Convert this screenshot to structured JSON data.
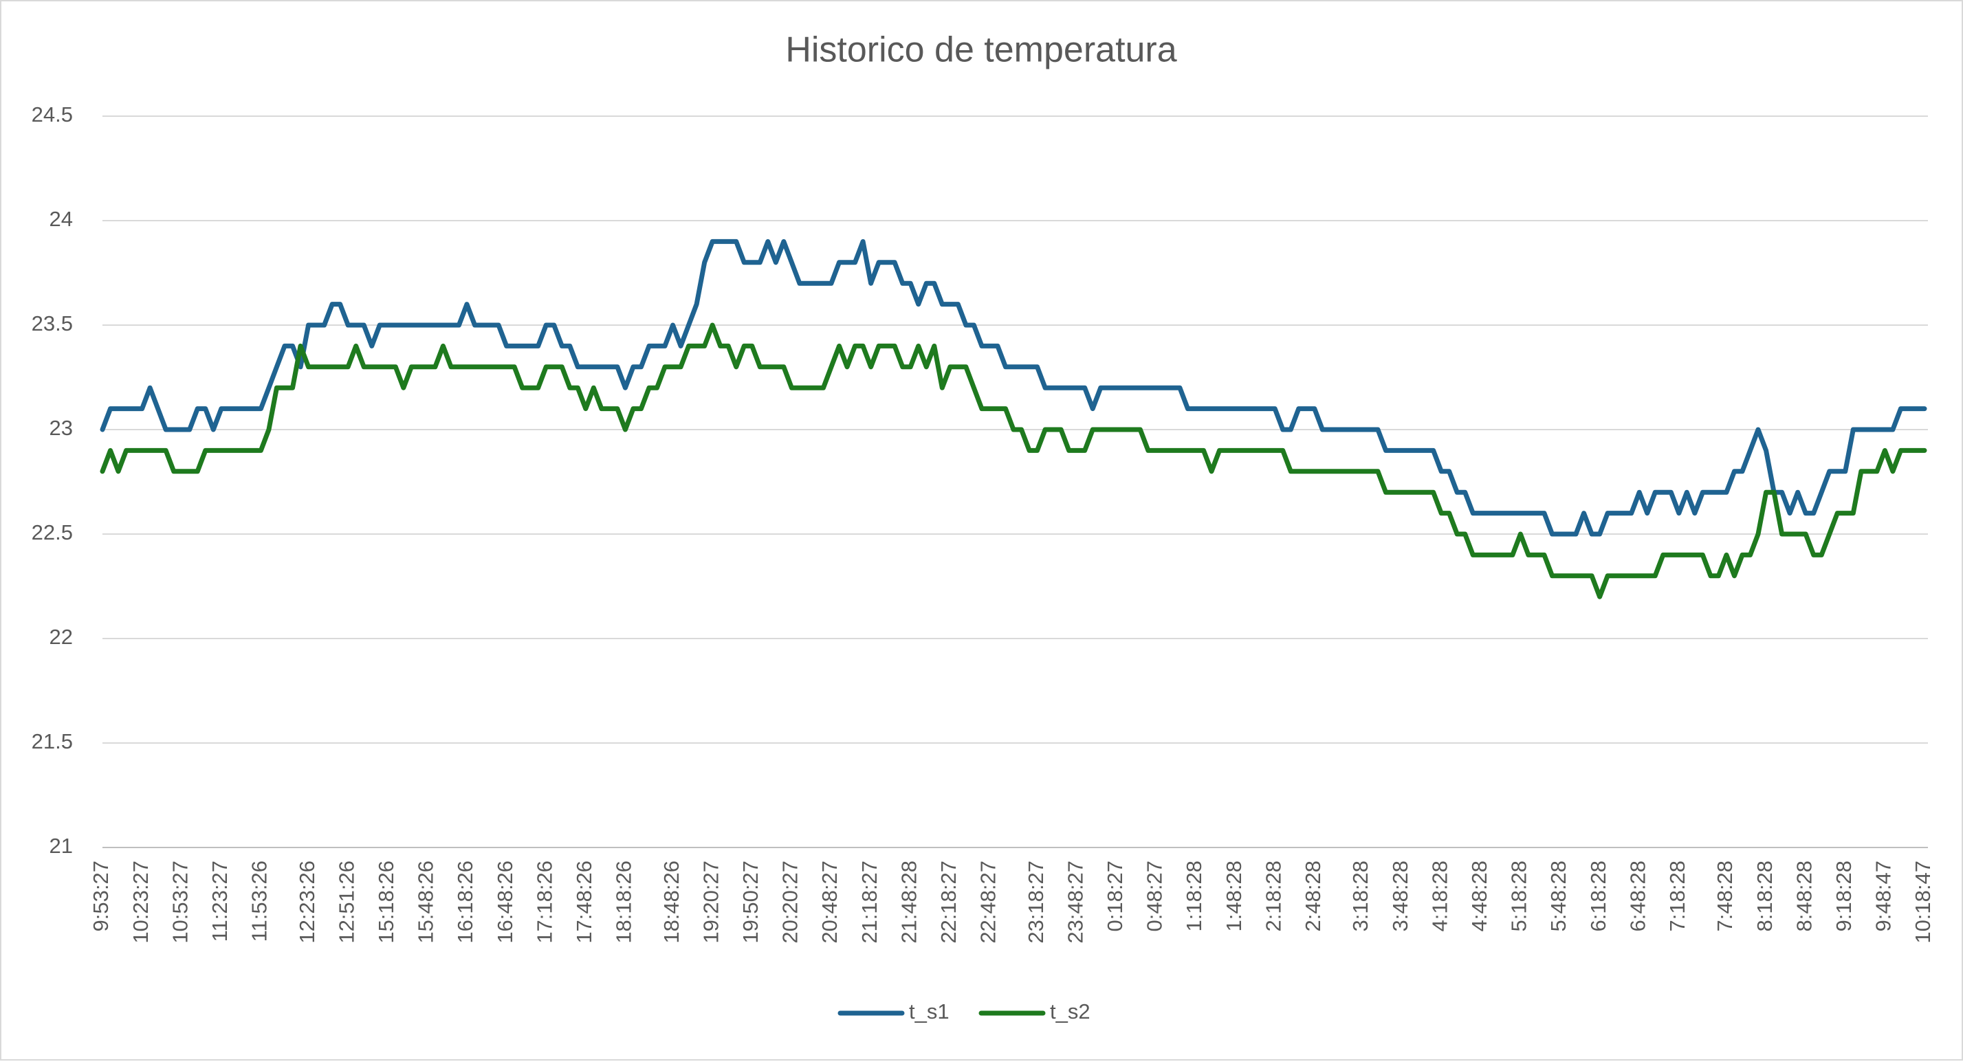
{
  "chart_data": {
    "type": "line",
    "title": "Historico de temperatura",
    "categories": [
      "9:53:27",
      null,
      null,
      null,
      null,
      "10:23:27",
      null,
      null,
      null,
      null,
      "10:53:27",
      null,
      null,
      null,
      null,
      "11:23:27",
      null,
      null,
      null,
      null,
      "11:53:26",
      null,
      null,
      null,
      null,
      null,
      "12:23:26",
      null,
      null,
      null,
      null,
      "12:51:26",
      null,
      null,
      null,
      null,
      "15:18:26",
      null,
      null,
      null,
      null,
      "15:48:26",
      null,
      null,
      null,
      null,
      "16:18:26",
      null,
      null,
      null,
      null,
      "16:48:26",
      null,
      null,
      null,
      null,
      "17:18:26",
      null,
      null,
      null,
      null,
      "17:48:26",
      null,
      null,
      null,
      null,
      "18:18:26",
      null,
      null,
      null,
      null,
      null,
      "18:48:26",
      null,
      null,
      null,
      null,
      "19:20:27",
      null,
      null,
      null,
      null,
      "19:50:27",
      null,
      null,
      null,
      null,
      "20:20:27",
      null,
      null,
      null,
      null,
      "20:48:27",
      null,
      null,
      null,
      null,
      "21:18:27",
      null,
      null,
      null,
      null,
      "21:48:28",
      null,
      null,
      null,
      null,
      "22:18:27",
      null,
      null,
      null,
      null,
      "22:48:27",
      null,
      null,
      null,
      null,
      null,
      "23:18:27",
      null,
      null,
      null,
      null,
      "23:48:27",
      null,
      null,
      null,
      null,
      "0:18:27",
      null,
      null,
      null,
      null,
      "0:48:27",
      null,
      null,
      null,
      null,
      "1:18:28",
      null,
      null,
      null,
      null,
      "1:48:28",
      null,
      null,
      null,
      null,
      "2:18:28",
      null,
      null,
      null,
      null,
      "2:48:28",
      null,
      null,
      null,
      null,
      null,
      "3:18:28",
      null,
      null,
      null,
      null,
      "3:48:28",
      null,
      null,
      null,
      null,
      "4:18:28",
      null,
      null,
      null,
      null,
      "4:48:28",
      null,
      null,
      null,
      null,
      "5:18:28",
      null,
      null,
      null,
      null,
      "5:48:28",
      null,
      null,
      null,
      null,
      "6:18:28",
      null,
      null,
      null,
      null,
      "6:48:28",
      null,
      null,
      null,
      null,
      "7:18:28",
      null,
      null,
      null,
      null,
      null,
      "7:48:28",
      null,
      null,
      null,
      null,
      "8:18:28",
      null,
      null,
      null,
      null,
      "8:48:28",
      null,
      null,
      null,
      null,
      "9:18:28",
      null,
      null,
      null,
      null,
      "9:48:47",
      null,
      null,
      null,
      null,
      "10:18:47"
    ],
    "series": [
      {
        "name": "t_s1",
        "color": "#1f6391",
        "values": [
          23.0,
          23.1,
          23.1,
          23.1,
          23.1,
          23.1,
          23.2,
          23.1,
          23.0,
          23.0,
          23.0,
          23.0,
          23.1,
          23.1,
          23.0,
          23.1,
          23.1,
          23.1,
          23.1,
          23.1,
          23.1,
          23.2,
          23.3,
          23.4,
          23.4,
          23.3,
          23.5,
          23.5,
          23.5,
          23.6,
          23.6,
          23.5,
          23.5,
          23.5,
          23.4,
          23.5,
          23.5,
          23.5,
          23.5,
          23.5,
          23.5,
          23.5,
          23.5,
          23.5,
          23.5,
          23.5,
          23.6,
          23.5,
          23.5,
          23.5,
          23.5,
          23.4,
          23.4,
          23.4,
          23.4,
          23.4,
          23.5,
          23.5,
          23.4,
          23.4,
          23.3,
          23.3,
          23.3,
          23.3,
          23.3,
          23.3,
          23.2,
          23.3,
          23.3,
          23.4,
          23.4,
          23.4,
          23.5,
          23.4,
          23.5,
          23.6,
          23.8,
          23.9,
          23.9,
          23.9,
          23.9,
          23.8,
          23.8,
          23.8,
          23.9,
          23.8,
          23.9,
          23.8,
          23.7,
          23.7,
          23.7,
          23.7,
          23.7,
          23.8,
          23.8,
          23.8,
          23.9,
          23.7,
          23.8,
          23.8,
          23.8,
          23.7,
          23.7,
          23.6,
          23.7,
          23.7,
          23.6,
          23.6,
          23.6,
          23.5,
          23.5,
          23.4,
          23.4,
          23.4,
          23.3,
          23.3,
          23.3,
          23.3,
          23.3,
          23.2,
          23.2,
          23.2,
          23.2,
          23.2,
          23.2,
          23.1,
          23.2,
          23.2,
          23.2,
          23.2,
          23.2,
          23.2,
          23.2,
          23.2,
          23.2,
          23.2,
          23.2,
          23.1,
          23.1,
          23.1,
          23.1,
          23.1,
          23.1,
          23.1,
          23.1,
          23.1,
          23.1,
          23.1,
          23.1,
          23.0,
          23.0,
          23.1,
          23.1,
          23.1,
          23.0,
          23.0,
          23.0,
          23.0,
          23.0,
          23.0,
          23.0,
          23.0,
          22.9,
          22.9,
          22.9,
          22.9,
          22.9,
          22.9,
          22.9,
          22.8,
          22.8,
          22.7,
          22.7,
          22.6,
          22.6,
          22.6,
          22.6,
          22.6,
          22.6,
          22.6,
          22.6,
          22.6,
          22.6,
          22.5,
          22.5,
          22.5,
          22.5,
          22.6,
          22.5,
          22.5,
          22.6,
          22.6,
          22.6,
          22.6,
          22.7,
          22.6,
          22.7,
          22.7,
          22.7,
          22.6,
          22.7,
          22.6,
          22.7,
          22.7,
          22.7,
          22.7,
          22.8,
          22.8,
          22.9,
          23.0,
          22.9,
          22.7,
          22.7,
          22.6,
          22.7,
          22.6,
          22.6,
          22.7,
          22.8,
          22.8,
          22.8,
          23.0,
          23.0,
          23.0,
          23.0,
          23.0,
          23.0,
          23.1,
          23.1,
          23.1,
          23.1
        ]
      },
      {
        "name": "t_s2",
        "color": "#1e7a1e",
        "values": [
          22.8,
          22.9,
          22.8,
          22.9,
          22.9,
          22.9,
          22.9,
          22.9,
          22.9,
          22.8,
          22.8,
          22.8,
          22.8,
          22.9,
          22.9,
          22.9,
          22.9,
          22.9,
          22.9,
          22.9,
          22.9,
          23.0,
          23.2,
          23.2,
          23.2,
          23.4,
          23.3,
          23.3,
          23.3,
          23.3,
          23.3,
          23.3,
          23.4,
          23.3,
          23.3,
          23.3,
          23.3,
          23.3,
          23.2,
          23.3,
          23.3,
          23.3,
          23.3,
          23.4,
          23.3,
          23.3,
          23.3,
          23.3,
          23.3,
          23.3,
          23.3,
          23.3,
          23.3,
          23.2,
          23.2,
          23.2,
          23.3,
          23.3,
          23.3,
          23.2,
          23.2,
          23.1,
          23.2,
          23.1,
          23.1,
          23.1,
          23.0,
          23.1,
          23.1,
          23.2,
          23.2,
          23.3,
          23.3,
          23.3,
          23.4,
          23.4,
          23.4,
          23.5,
          23.4,
          23.4,
          23.3,
          23.4,
          23.4,
          23.3,
          23.3,
          23.3,
          23.3,
          23.2,
          23.2,
          23.2,
          23.2,
          23.2,
          23.3,
          23.4,
          23.3,
          23.4,
          23.4,
          23.3,
          23.4,
          23.4,
          23.4,
          23.3,
          23.3,
          23.4,
          23.3,
          23.4,
          23.2,
          23.3,
          23.3,
          23.3,
          23.2,
          23.1,
          23.1,
          23.1,
          23.1,
          23.0,
          23.0,
          22.9,
          22.9,
          23.0,
          23.0,
          23.0,
          22.9,
          22.9,
          22.9,
          23.0,
          23.0,
          23.0,
          23.0,
          23.0,
          23.0,
          23.0,
          22.9,
          22.9,
          22.9,
          22.9,
          22.9,
          22.9,
          22.9,
          22.9,
          22.8,
          22.9,
          22.9,
          22.9,
          22.9,
          22.9,
          22.9,
          22.9,
          22.9,
          22.9,
          22.8,
          22.8,
          22.8,
          22.8,
          22.8,
          22.8,
          22.8,
          22.8,
          22.8,
          22.8,
          22.8,
          22.8,
          22.7,
          22.7,
          22.7,
          22.7,
          22.7,
          22.7,
          22.7,
          22.6,
          22.6,
          22.5,
          22.5,
          22.4,
          22.4,
          22.4,
          22.4,
          22.4,
          22.4,
          22.5,
          22.4,
          22.4,
          22.4,
          22.3,
          22.3,
          22.3,
          22.3,
          22.3,
          22.3,
          22.2,
          22.3,
          22.3,
          22.3,
          22.3,
          22.3,
          22.3,
          22.3,
          22.4,
          22.4,
          22.4,
          22.4,
          22.4,
          22.4,
          22.3,
          22.3,
          22.4,
          22.3,
          22.4,
          22.4,
          22.5,
          22.7,
          22.7,
          22.5,
          22.5,
          22.5,
          22.5,
          22.4,
          22.4,
          22.5,
          22.6,
          22.6,
          22.6,
          22.8,
          22.8,
          22.8,
          22.9,
          22.8,
          22.9,
          22.9,
          22.9,
          22.9
        ]
      }
    ],
    "ylim": [
      21,
      24.5
    ],
    "yticks": [
      21,
      21.5,
      22,
      22.5,
      23,
      23.5,
      24,
      24.5
    ],
    "grid": true,
    "legend": "bottom"
  }
}
